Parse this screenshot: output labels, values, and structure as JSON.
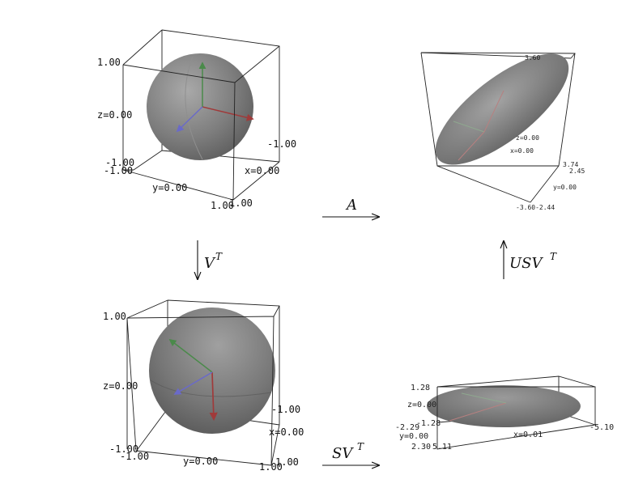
{
  "panels": {
    "top_left": {
      "tick_z_top": "1.00",
      "label_z": "z=0.00",
      "tick_z_bottom": "-1.00",
      "tick_z_bottom2": "-1.00",
      "label_y": "y=0.00",
      "tick_y_end": "1.00",
      "tick_x_end": "1.00",
      "tick_x_start": "-1.00",
      "label_x": "x=0.00"
    },
    "top_right": {
      "tick_z_top": "3.60",
      "label_z": "z=0.00",
      "label_x": "x=0.00",
      "tick_a": "3.74",
      "tick_b": "2.45",
      "label_y": "y=0.00",
      "tick_bottom": "-3.60-2.44"
    },
    "bottom_left": {
      "tick_z_top": "1.00",
      "label_z": "z=0.00",
      "tick_z_bottom": "-1.00",
      "tick_y_start": "-1.00",
      "label_y": "y=0.00",
      "tick_y_end": "1.00",
      "tick_x_end": "1.00",
      "tick_x_start": "-1.00",
      "label_x": "x=0.00"
    },
    "bottom_right": {
      "tick_z_top": "1.28",
      "label_z": "z=0.00",
      "tick_z_bottom": "-2.29",
      "tick_z_bottom2": "-1.28",
      "label_y": "y=0.00",
      "tick_y_end": "2.30",
      "tick_y_end2": "5.11",
      "label_x": "x=0.01",
      "tick_x_end": "-5.10"
    }
  },
  "arrows": {
    "A": "A",
    "VT_base": "V",
    "VT_sup": "T",
    "USVT_base": "USV",
    "USVT_sup": "T",
    "SVT_base": "SV",
    "SVT_sup": "T"
  },
  "colors": {
    "axis_red": "#a03a3a",
    "axis_green": "#4a8a4a",
    "axis_blue": "#6a6ac8",
    "surface": "#6e6e6e"
  }
}
